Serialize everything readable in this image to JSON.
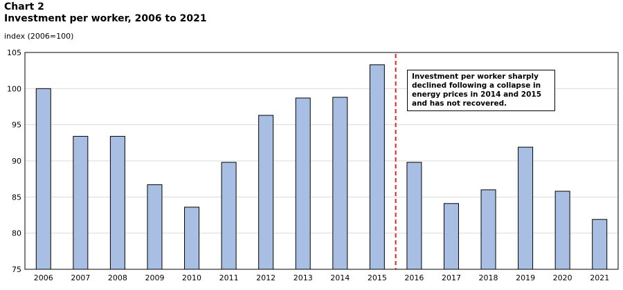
{
  "chart_label": "Chart 2",
  "title": "Investment per worker, 2006 to 2021",
  "y_unit": "index (2006=100)",
  "annotation": "Investment per worker sharply declined following a collapse in energy prices in 2014 and 2015 and has not recovered.",
  "colors": {
    "bar": "#a8bfe3",
    "bar_stroke": "#000000",
    "grid": "#d9d9d9",
    "divider": "#e8231f"
  },
  "chart_data": {
    "type": "bar",
    "title": "Investment per worker, 2006 to 2021",
    "ylabel": "index (2006=100)",
    "xlabel": "",
    "categories": [
      "2006",
      "2007",
      "2008",
      "2009",
      "2010",
      "2011",
      "2012",
      "2013",
      "2014",
      "2015",
      "2016",
      "2017",
      "2018",
      "2019",
      "2020",
      "2021"
    ],
    "values": [
      100.0,
      93.4,
      93.4,
      86.7,
      83.6,
      89.8,
      96.3,
      98.7,
      98.8,
      103.3,
      89.8,
      84.1,
      86.0,
      91.9,
      85.8,
      81.9
    ],
    "ylim": [
      75,
      105
    ],
    "yticks": [
      75,
      80,
      85,
      90,
      95,
      100,
      105
    ],
    "grid": true,
    "divider_between": [
      "2015",
      "2016"
    ]
  }
}
